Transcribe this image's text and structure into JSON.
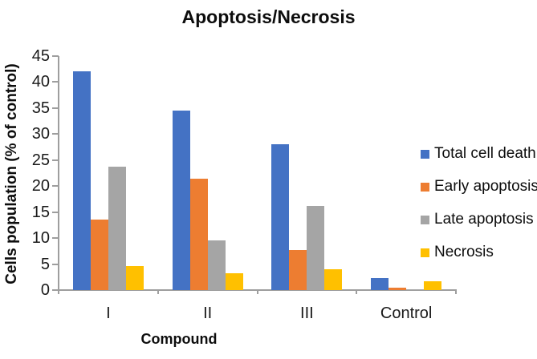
{
  "chart_data": {
    "type": "bar",
    "title": "Apoptosis/Necrosis",
    "xlabel": "Compound",
    "ylabel": "Cells population (% of control)",
    "categories": [
      "I",
      "II",
      "III",
      "Control"
    ],
    "series": [
      {
        "name": "Total cell death",
        "color": "#4472C4",
        "values": [
          42.0,
          34.5,
          28.0,
          2.3
        ]
      },
      {
        "name": "Early apoptosis",
        "color": "#ED7D31",
        "values": [
          13.5,
          21.4,
          7.7,
          0.4
        ]
      },
      {
        "name": "Late apoptosis",
        "color": "#A5A5A5",
        "values": [
          23.8,
          9.5,
          16.2,
          0.1
        ]
      },
      {
        "name": "Necrosis",
        "color": "#FFC000",
        "values": [
          4.7,
          3.3,
          4.0,
          1.7
        ]
      }
    ],
    "ylim": [
      0,
      45
    ],
    "yticks": [
      0,
      5,
      10,
      15,
      20,
      25,
      30,
      35,
      40,
      45
    ],
    "grid": false,
    "legend_position": "right",
    "axis_color": "#9e9e9e"
  }
}
